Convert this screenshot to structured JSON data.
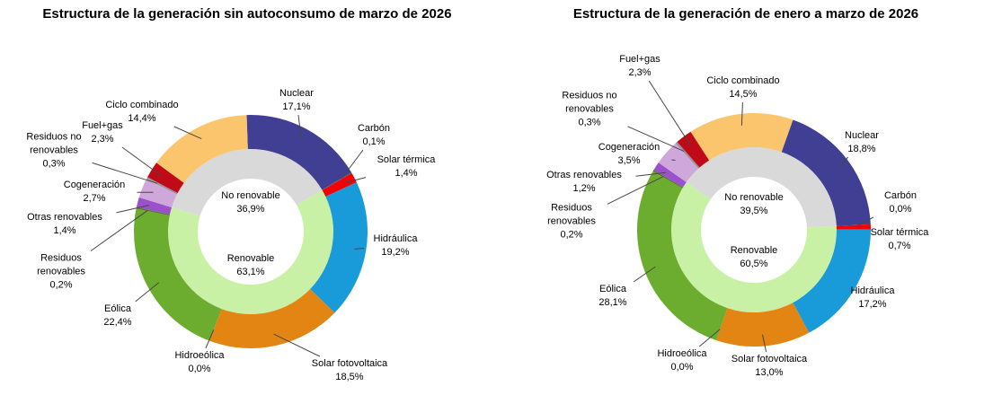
{
  "report": {
    "background_color": "#FFFFFF",
    "text_color": "#000000",
    "leader_line_color": "#474747"
  },
  "chart_data": [
    {
      "type": "pie",
      "subtype": "double-donut",
      "title": "Estructura de la generación sin autoconsumo de marzo de 2026",
      "layout_hints": {
        "start_angle_deg": -2,
        "direction": "clockwise",
        "labels": "outside-with-leader-lines",
        "legend_position": "none"
      },
      "inner_ring": [
        {
          "id": "no-renovable",
          "label": "No renovable",
          "value_label": "36,9%",
          "value_pct": 36.9,
          "color": "#D9D9D9"
        },
        {
          "id": "renovable",
          "label": "Renovable",
          "value_label": "63,1%",
          "value_pct": 63.1,
          "color": "#C9F1A5"
        }
      ],
      "segments": [
        {
          "id": "nuclear",
          "label": "Nuclear",
          "value_label": "17,1%",
          "value_pct": 17.1,
          "color": "#403F94",
          "group": "no_renovable"
        },
        {
          "id": "carbon",
          "label": "Carbón",
          "value_label": "0,1%",
          "value_pct": 0.1,
          "color": "#53565A",
          "group": "no_renovable"
        },
        {
          "id": "solar-termica",
          "label": "Solar térmica",
          "value_label": "1,4%",
          "value_pct": 1.4,
          "color": "#F50105",
          "group": "renovable"
        },
        {
          "id": "hidraulica",
          "label": "Hidráulica",
          "value_label": "19,2%",
          "value_pct": 19.2,
          "color": "#189BD8",
          "group": "renovable"
        },
        {
          "id": "solar-fotovoltaica",
          "label": "Solar fotovoltaica",
          "value_label": "18,5%",
          "value_pct": 18.5,
          "color": "#E38513",
          "group": "renovable"
        },
        {
          "id": "hidroeolica",
          "label": "Hidroeólica",
          "value_label": "0,0%",
          "value_pct": 0.0,
          "color": "#7EC8E3",
          "group": "renovable"
        },
        {
          "id": "eolica",
          "label": "Eólica",
          "value_label": "22,4%",
          "value_pct": 22.4,
          "color": "#6CAD2F",
          "group": "renovable"
        },
        {
          "id": "residuos-renovables",
          "label": "Residuos renovables",
          "value_label": "0,2%",
          "value_pct": 0.2,
          "color": "#56742B",
          "group": "renovable"
        },
        {
          "id": "otras-renovables",
          "label": "Otras renovables",
          "value_label": "1,4%",
          "value_pct": 1.4,
          "color": "#9B51CB",
          "group": "renovable"
        },
        {
          "id": "cogeneracion",
          "label": "Cogeneración",
          "value_label": "2,7%",
          "value_pct": 2.7,
          "color": "#CFA7DA",
          "group": "no_renovable"
        },
        {
          "id": "residuos-no-renovables",
          "label": "Residuos no renovables",
          "value_label": "0,3%",
          "value_pct": 0.3,
          "color": "#939598",
          "group": "no_renovable"
        },
        {
          "id": "fuel-gas",
          "label": "Fuel+gas",
          "value_label": "2,3%",
          "value_pct": 2.3,
          "color": "#C00A17",
          "group": "no_renovable"
        },
        {
          "id": "ciclo-combinado",
          "label": "Ciclo combinado",
          "value_label": "14,4%",
          "value_pct": 14.4,
          "color": "#FBC56D",
          "group": "no_renovable"
        }
      ]
    },
    {
      "type": "pie",
      "subtype": "double-donut",
      "title": "Estructura de la generación de enero a marzo de 2026",
      "layout_hints": {
        "start_angle_deg": 19.5,
        "direction": "clockwise",
        "labels": "outside-with-leader-lines",
        "legend_position": "none"
      },
      "inner_ring": [
        {
          "id": "no-renovable",
          "label": "No renovable",
          "value_label": "39,5%",
          "value_pct": 39.5,
          "color": "#D9D9D9"
        },
        {
          "id": "renovable",
          "label": "Renovable",
          "value_label": "60,5%",
          "value_pct": 60.5,
          "color": "#C9F1A5"
        }
      ],
      "segments": [
        {
          "id": "nuclear",
          "label": "Nuclear",
          "value_label": "18,8%",
          "value_pct": 18.8,
          "color": "#403F94",
          "group": "no_renovable"
        },
        {
          "id": "carbon",
          "label": "Carbón",
          "value_label": "0,0%",
          "value_pct": 0.0,
          "color": "#53565A",
          "group": "no_renovable"
        },
        {
          "id": "solar-termica",
          "label": "Solar térmica",
          "value_label": "0,7%",
          "value_pct": 0.7,
          "color": "#F50105",
          "group": "renovable"
        },
        {
          "id": "hidraulica",
          "label": "Hidráulica",
          "value_label": "17,2%",
          "value_pct": 17.2,
          "color": "#189BD8",
          "group": "renovable"
        },
        {
          "id": "solar-fotovoltaica",
          "label": "Solar fotovoltaica",
          "value_label": "13,0%",
          "value_pct": 13.0,
          "color": "#E38513",
          "group": "renovable"
        },
        {
          "id": "hidroeolica",
          "label": "Hidroeólica",
          "value_label": "0,0%",
          "value_pct": 0.0,
          "color": "#7EC8E3",
          "group": "renovable"
        },
        {
          "id": "eolica",
          "label": "Eólica",
          "value_label": "28,1%",
          "value_pct": 28.1,
          "color": "#6CAD2F",
          "group": "renovable"
        },
        {
          "id": "residuos-renovables",
          "label": "Residuos renovables",
          "value_label": "0,2%",
          "value_pct": 0.2,
          "color": "#56742B",
          "group": "renovable"
        },
        {
          "id": "otras-renovables",
          "label": "Otras renovables",
          "value_label": "1,2%",
          "value_pct": 1.2,
          "color": "#9B51CB",
          "group": "renovable"
        },
        {
          "id": "cogeneracion",
          "label": "Cogeneración",
          "value_label": "3,5%",
          "value_pct": 3.5,
          "color": "#CFA7DA",
          "group": "no_renovable"
        },
        {
          "id": "residuos-no-renovables",
          "label": "Residuos no renovables",
          "value_label": "0,3%",
          "value_pct": 0.3,
          "color": "#939598",
          "group": "no_renovable"
        },
        {
          "id": "fuel-gas",
          "label": "Fuel+gas",
          "value_label": "2,3%",
          "value_pct": 2.3,
          "color": "#C00A17",
          "group": "no_renovable"
        },
        {
          "id": "ciclo-combinado",
          "label": "Ciclo combinado",
          "value_label": "14,5%",
          "value_pct": 14.5,
          "color": "#FBC56D",
          "group": "no_renovable"
        }
      ]
    }
  ]
}
